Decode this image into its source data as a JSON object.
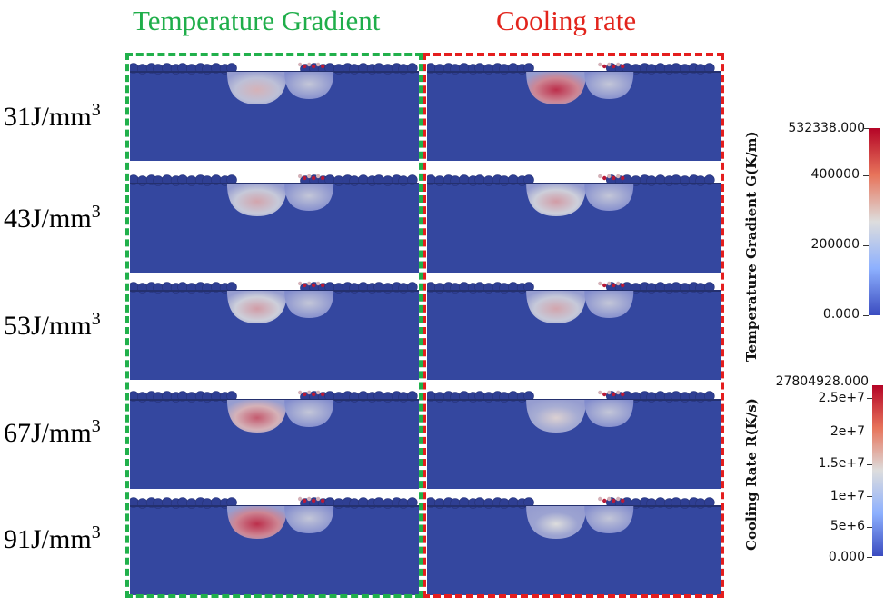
{
  "headers": {
    "temperature_gradient": "Temperature Gradient",
    "cooling_rate": "Cooling rate"
  },
  "rows": [
    {
      "label": "31J/mm",
      "exp": "3",
      "g_pool": 0.25,
      "r_pool": 0.55
    },
    {
      "label": "43J/mm",
      "exp": "3",
      "g_pool": 0.28,
      "r_pool": 0.3
    },
    {
      "label": "53J/mm",
      "exp": "3",
      "g_pool": 0.3,
      "r_pool": 0.28
    },
    {
      "label": "67J/mm",
      "exp": "3",
      "g_pool": 0.45,
      "r_pool": 0.18
    },
    {
      "label": "91J/mm",
      "exp": "3",
      "g_pool": 0.55,
      "r_pool": 0.15
    }
  ],
  "colorbars": {
    "gradient": {
      "title": "Temperature Gradient G(K/m)",
      "max_label": "532338.000",
      "ticks": [
        "400000",
        "200000",
        "0.000"
      ]
    },
    "cooling": {
      "title": "Cooling Rate R(K/s)",
      "max_label": "27804928.000",
      "ticks": [
        "2.5e+7",
        "2e+7",
        "1.5e+7",
        "1e+7",
        "5e+6",
        "0.000"
      ]
    }
  },
  "colors": {
    "substrate": "#34479f",
    "powder": "#2f3f93",
    "cmap_low": "#3b4cc0",
    "cmap_mid": "#dddddd",
    "cmap_high": "#b40426",
    "green_frame": "#21b04b",
    "red_frame": "#e41e1e"
  }
}
